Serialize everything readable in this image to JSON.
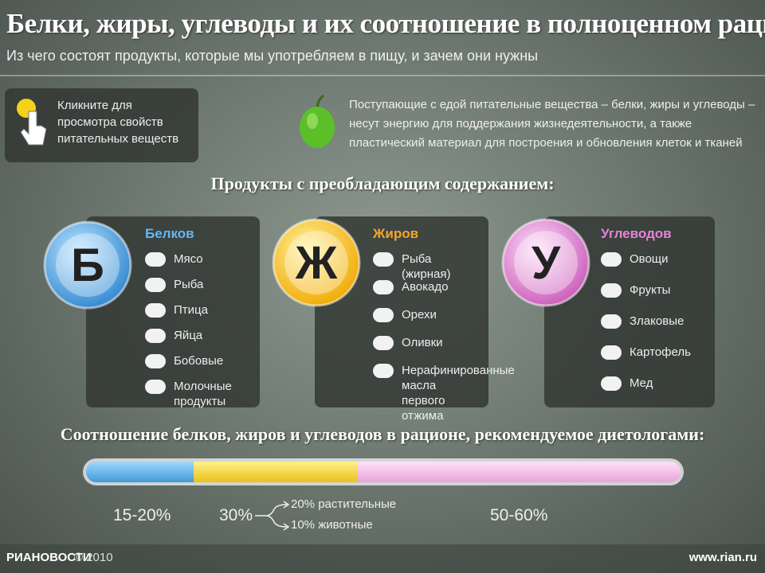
{
  "header": {
    "title": "Белки, жиры, углеводы и их соотношение в полноценном рационе",
    "subtitle": "Из чего состоят продукты, которые мы употребляем в пищу, и зачем они нужны"
  },
  "hint": "Кликните для просмотра свойств питательных веществ",
  "intro": "Поступающие с едой питательные вещества – белки, жиры и углеводы – несут энергию для поддержания жизнедеятельности, а также пластический материал для построения и обновления клеток и тканей",
  "products_heading": "Продукты с преобладающим содержанием:",
  "groups": [
    {
      "letter": "Б",
      "title": "Белков",
      "items": [
        "Мясо",
        "Рыба",
        "Птица",
        "Яйца",
        "Бобовые",
        "Молочные продукты"
      ]
    },
    {
      "letter": "Ж",
      "title": "Жиров",
      "items": [
        "Рыба (жирная)",
        "Авокадо",
        "Орехи",
        "Оливки",
        "Нерафинированные масла первого отжима"
      ]
    },
    {
      "letter": "У",
      "title": "Углеводов",
      "items": [
        "Овощи",
        "Фрукты",
        "Злаковые",
        "Картофель",
        "Мед"
      ]
    }
  ],
  "ratio": {
    "heading": "Соотношение белков, жиров и углеводов в рационе, рекомендуемое диетологами:",
    "segments": [
      {
        "label": "15-20%"
      },
      {
        "label": "30%",
        "details": [
          "20% растительные",
          "10% животные"
        ]
      },
      {
        "label": "50-60%"
      }
    ]
  },
  "footer": {
    "brand": "РИАНОВОСТИ",
    "copyright": "© 2010",
    "url": "www.rian.ru"
  }
}
